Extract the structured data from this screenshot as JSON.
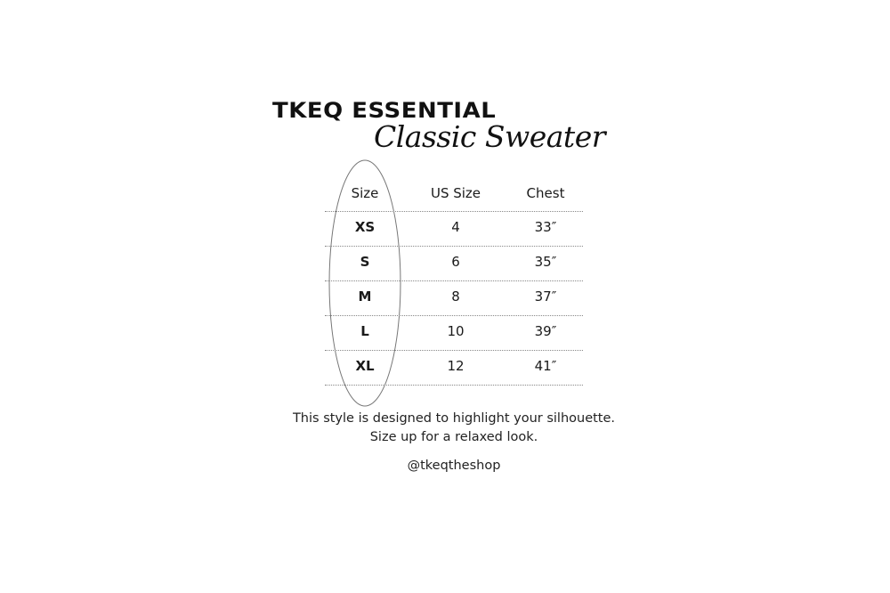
{
  "title": {
    "brand": "TKEQ ESSENTIAL",
    "product": "Classic Sweater"
  },
  "table": {
    "headers": [
      "Size",
      "US Size",
      "Chest"
    ],
    "rows": [
      [
        "XS",
        "4",
        "33″"
      ],
      [
        "S",
        "6",
        "35″"
      ],
      [
        "M",
        "8",
        "37″"
      ],
      [
        "L",
        "10",
        "39″"
      ],
      [
        "XL",
        "12",
        "41″"
      ]
    ],
    "highlighted_column": "Size"
  },
  "notes": {
    "line1": "This style is designed to highlight your silhouette.",
    "line2": "Size up for a relaxed look.",
    "handle": "@tkeqtheshop"
  }
}
